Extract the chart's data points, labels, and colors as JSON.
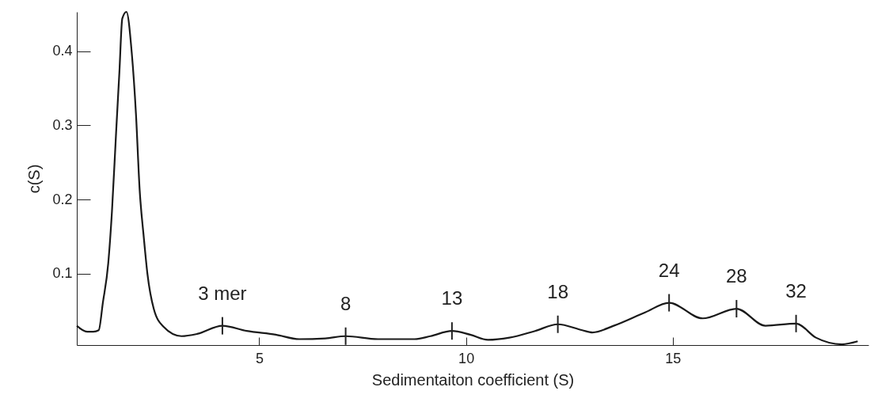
{
  "chart_data": {
    "type": "line",
    "xlabel": "Sedimentaiton coefficient (S)",
    "ylabel": "c(S)",
    "x": [
      0.59,
      0.84,
      0.99,
      1.12,
      1.22,
      1.35,
      1.44,
      1.54,
      1.62,
      1.69,
      1.79,
      1.92,
      2.02,
      2.11,
      2.21,
      2.3,
      2.45,
      2.68,
      3.12,
      3.5,
      4.11,
      4.7,
      5.4,
      5.97,
      6.6,
      7.09,
      7.87,
      8.76,
      9.14,
      9.66,
      10.1,
      10.53,
      11.05,
      11.67,
      12.22,
      12.81,
      13.06,
      13.57,
      14.33,
      14.91,
      15.72,
      16.54,
      17.24,
      17.98,
      18.46,
      19.09,
      19.47
    ],
    "series": [
      {
        "color": "#1a1a1a",
        "values": [
          0.03,
          0.022,
          0.022,
          0.024,
          0.061,
          0.114,
          0.184,
          0.29,
          0.372,
          0.444,
          0.453,
          0.397,
          0.316,
          0.213,
          0.149,
          0.099,
          0.053,
          0.029,
          0.016,
          0.019,
          0.03,
          0.023,
          0.018,
          0.012,
          0.013,
          0.016,
          0.012,
          0.012,
          0.016,
          0.023,
          0.018,
          0.011,
          0.014,
          0.023,
          0.032,
          0.024,
          0.021,
          0.03,
          0.048,
          0.061,
          0.04,
          0.053,
          0.03,
          0.033,
          0.014,
          0.005,
          0.009
        ]
      }
    ],
    "xlim": [
      0.59,
      19.73
    ],
    "ylim": [
      0.004,
      0.453
    ],
    "xticks": [
      5,
      10,
      15
    ],
    "yticks": [
      0.1,
      0.2,
      0.3,
      0.4
    ],
    "grid": false,
    "marker": "none",
    "line_style": "solid",
    "annotations": [
      {
        "text": "3 mer",
        "x": 4.11,
        "y": 0.03
      },
      {
        "text": "8",
        "x": 7.09,
        "y": 0.016
      },
      {
        "text": "13",
        "x": 9.66,
        "y": 0.023
      },
      {
        "text": "18",
        "x": 12.22,
        "y": 0.032
      },
      {
        "text": "24",
        "x": 14.91,
        "y": 0.061
      },
      {
        "text": "28",
        "x": 16.54,
        "y": 0.053
      },
      {
        "text": "32",
        "x": 17.98,
        "y": 0.033
      }
    ]
  }
}
